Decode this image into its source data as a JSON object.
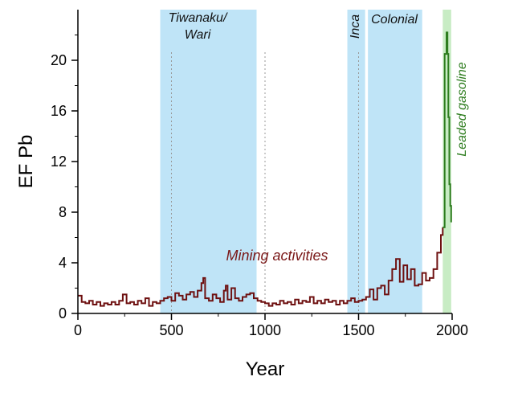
{
  "chart_data": {
    "type": "line",
    "title": "",
    "xlabel": "Year",
    "ylabel": "EF Pb",
    "xlim": [
      0,
      2000
    ],
    "ylim": [
      0,
      24
    ],
    "x_ticks": [
      0,
      500,
      1000,
      1500,
      2000
    ],
    "y_ticks": [
      0,
      4,
      8,
      12,
      16,
      20
    ],
    "grid": false,
    "periods": [
      {
        "label_lines": [
          "Tiwanaku/",
          "Wari"
        ],
        "start": 440,
        "end": 955,
        "color": "#bfe4f7"
      },
      {
        "label_lines": [
          "Inca"
        ],
        "start": 1440,
        "end": 1535,
        "color": "#bfe4f7"
      },
      {
        "label_lines": [
          "Colonial"
        ],
        "start": 1550,
        "end": 1840,
        "color": "#bfe4f7"
      },
      {
        "label_lines": [
          "Leaded gasoline"
        ],
        "start": 1950,
        "end": 1995,
        "color": "#c8ecc4"
      }
    ],
    "annotations": [
      {
        "text": "Mining activities",
        "color": "#7a1818"
      }
    ],
    "dotted_year_markers": [
      500,
      1000,
      1500
    ],
    "series": [
      {
        "color": "#6e1010",
        "x": [
          0,
          20,
          40,
          60,
          80,
          100,
          120,
          140,
          160,
          180,
          200,
          220,
          240,
          260,
          280,
          300,
          320,
          340,
          360,
          380,
          400,
          420,
          440,
          460,
          480,
          500,
          520,
          540,
          560,
          580,
          600,
          620,
          640,
          660,
          670,
          680,
          700,
          720,
          740,
          760,
          780,
          790,
          800,
          820,
          840,
          860,
          880,
          900,
          920,
          940,
          960,
          980,
          1000,
          1020,
          1040,
          1060,
          1080,
          1100,
          1120,
          1140,
          1160,
          1180,
          1200,
          1220,
          1240,
          1260,
          1280,
          1300,
          1320,
          1340,
          1360,
          1380,
          1400,
          1420,
          1440,
          1460,
          1480,
          1500,
          1520,
          1540,
          1560,
          1580,
          1600,
          1620,
          1640,
          1660,
          1680,
          1700,
          1720,
          1740,
          1760,
          1780,
          1800,
          1820,
          1840,
          1860,
          1880,
          1900,
          1920,
          1940,
          1950
        ],
        "y": [
          1.4,
          0.9,
          0.8,
          1.0,
          0.7,
          0.9,
          0.6,
          0.8,
          0.7,
          0.9,
          0.7,
          1.0,
          1.5,
          0.8,
          0.9,
          0.7,
          1.0,
          0.8,
          1.2,
          0.6,
          0.9,
          0.8,
          1.0,
          1.2,
          1.3,
          1.0,
          1.6,
          1.4,
          1.1,
          1.5,
          1.7,
          1.3,
          1.8,
          2.4,
          2.8,
          1.2,
          1.0,
          1.5,
          1.2,
          0.9,
          1.8,
          2.2,
          1.1,
          2.0,
          1.2,
          1.0,
          1.3,
          1.5,
          1.6,
          1.2,
          1.0,
          0.9,
          0.8,
          0.6,
          0.8,
          0.7,
          1.0,
          0.8,
          0.9,
          0.7,
          1.1,
          0.8,
          1.0,
          0.9,
          1.3,
          0.8,
          1.0,
          0.8,
          1.1,
          0.9,
          1.0,
          0.7,
          1.0,
          0.8,
          1.0,
          1.2,
          0.9,
          1.0,
          1.1,
          1.3,
          1.9,
          1.1,
          2.0,
          2.2,
          1.5,
          2.6,
          3.5,
          4.3,
          2.5,
          3.8,
          2.7,
          3.5,
          2.2,
          2.3,
          3.2,
          2.6,
          2.8,
          3.5,
          4.8,
          6.2,
          6.8
        ]
      },
      {
        "color": "#2e7d1f",
        "x": [
          1950,
          1960,
          1970,
          1975,
          1980,
          1985,
          1990,
          1995
        ],
        "y": [
          6.8,
          20.5,
          22.2,
          20.5,
          15.5,
          10.2,
          8.5,
          7.2
        ]
      }
    ]
  }
}
